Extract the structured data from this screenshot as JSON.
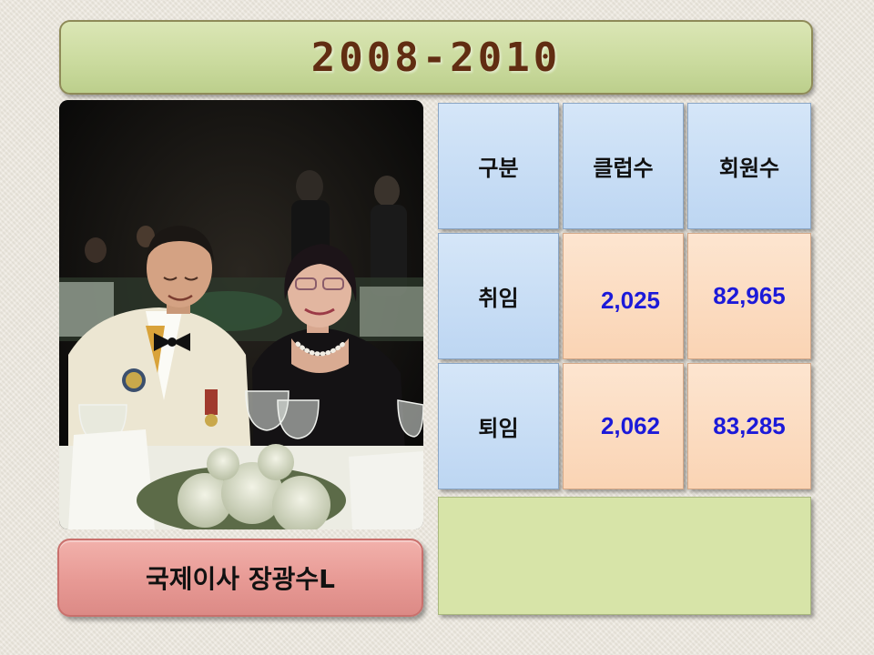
{
  "title": "2008-2010",
  "caption": "국제이사 장광수L",
  "photo": {
    "description_icon": "photo-couple-at-gala"
  },
  "table": {
    "headers": [
      "구분",
      "클럽수",
      "회원수"
    ],
    "rows": [
      {
        "label": "취임",
        "clubs": "2,025",
        "members": "82,965"
      },
      {
        "label": "퇴임",
        "clubs": "2,062",
        "members": "83,285"
      }
    ]
  },
  "colors": {
    "title_text": "#612d12",
    "title_banner": "#cbdb9f",
    "caption_box": "#e79994",
    "header_cell": "#bdd6f2",
    "value_cell": "#fad4b4",
    "value_text": "#1c1ad9",
    "footer_box": "#d7e4a8"
  }
}
